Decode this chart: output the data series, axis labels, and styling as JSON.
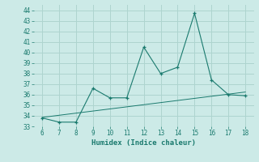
{
  "x": [
    6,
    7,
    8,
    9,
    10,
    11,
    12,
    13,
    14,
    15,
    16,
    17,
    18
  ],
  "y_line": [
    33.8,
    33.4,
    33.4,
    36.6,
    35.7,
    35.7,
    40.5,
    38.0,
    38.6,
    43.7,
    37.4,
    36.0,
    35.9
  ],
  "y_trend": [
    33.85,
    34.05,
    34.25,
    34.45,
    34.65,
    34.85,
    35.05,
    35.25,
    35.45,
    35.65,
    35.85,
    36.05,
    36.25
  ],
  "line_color": "#1a7a6e",
  "bg_color": "#cceae7",
  "grid_color": "#aed4cf",
  "xlabel": "Humidex (Indice chaleur)",
  "ylim": [
    33,
    44.5
  ],
  "xlim": [
    5.5,
    18.5
  ],
  "yticks": [
    33,
    34,
    35,
    36,
    37,
    38,
    39,
    40,
    41,
    42,
    43,
    44
  ],
  "xticks": [
    6,
    7,
    8,
    9,
    10,
    11,
    12,
    13,
    14,
    15,
    16,
    17,
    18
  ]
}
